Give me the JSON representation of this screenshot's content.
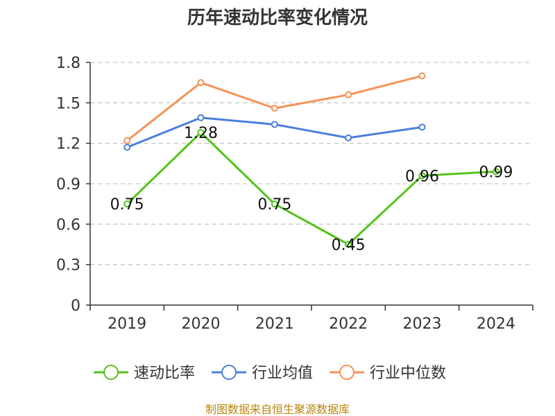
{
  "chart_data": {
    "type": "line",
    "title": "历年速动比率变化情况",
    "categories": [
      "2019",
      "2020",
      "2021",
      "2022",
      "2023",
      "2024"
    ],
    "ylim": [
      0,
      1.8
    ],
    "yticks": [
      "0",
      "0.3",
      "0.6",
      "0.9",
      "1.2",
      "1.5",
      "1.8"
    ],
    "grid": true,
    "legend_position": "bottom",
    "series": [
      {
        "name": "速动比率",
        "color": "#52c41a",
        "values": [
          0.75,
          1.28,
          0.75,
          0.45,
          0.96,
          0.99
        ],
        "labels": [
          "0.75",
          "1.28",
          "0.75",
          "0.45",
          "0.96",
          "0.99"
        ]
      },
      {
        "name": "行业均值",
        "color": "#4a7fdc",
        "values": [
          1.17,
          1.39,
          1.34,
          1.24,
          1.32,
          null
        ]
      },
      {
        "name": "行业中位数",
        "color": "#f79256",
        "values": [
          1.22,
          1.65,
          1.46,
          1.56,
          1.7,
          null
        ]
      }
    ],
    "source": "制图数据来自恒生聚源数据库"
  }
}
